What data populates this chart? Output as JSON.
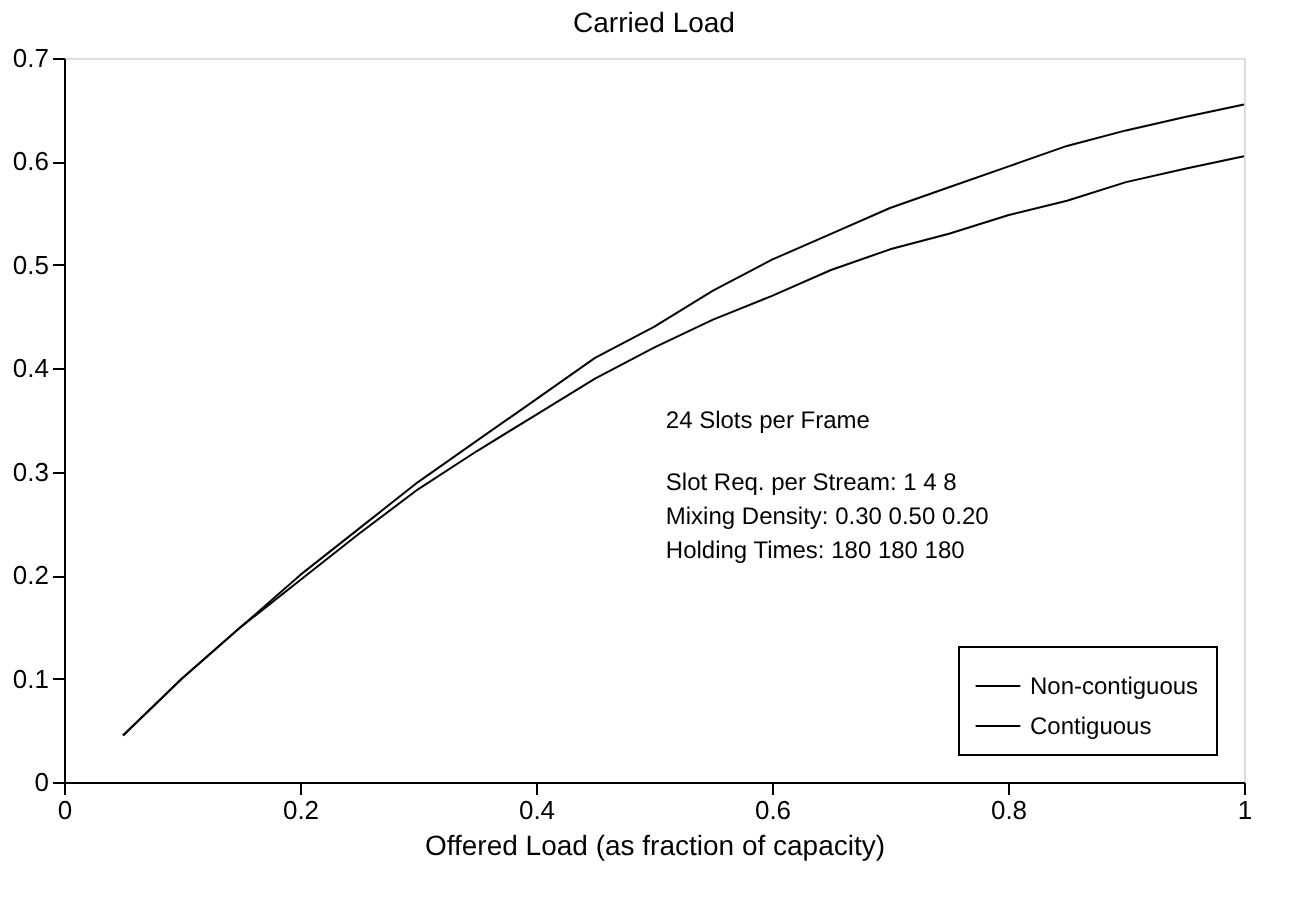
{
  "chart_data": {
    "type": "line",
    "title": "Carried Load",
    "xlabel": "Offered Load (as fraction of capacity)",
    "x": [
      0.05,
      0.1,
      0.15,
      0.2,
      0.25,
      0.3,
      0.35,
      0.4,
      0.45,
      0.5,
      0.55,
      0.6,
      0.65,
      0.7,
      0.75,
      0.8,
      0.85,
      0.9,
      0.95,
      1.0
    ],
    "series": [
      {
        "name": "Non-contiguous",
        "color": "#000000",
        "values": [
          0.045,
          0.1,
          0.15,
          0.2,
          0.245,
          0.29,
          0.33,
          0.37,
          0.41,
          0.44,
          0.475,
          0.505,
          0.53,
          0.555,
          0.575,
          0.595,
          0.615,
          0.63,
          0.643,
          0.655
        ]
      },
      {
        "name": "Contiguous",
        "color": "#000000",
        "values": [
          0.045,
          0.1,
          0.15,
          0.195,
          0.24,
          0.283,
          0.32,
          0.355,
          0.39,
          0.42,
          0.447,
          0.47,
          0.495,
          0.515,
          0.53,
          0.548,
          0.562,
          0.58,
          0.593,
          0.605
        ]
      }
    ],
    "annotations": [
      "24 Slots per Frame",
      "Slot Req. per Stream: 1  4  8",
      "Mixing Density: 0.30  0.50  0.20",
      "Holding Times: 180  180  180"
    ],
    "xlim": [
      0,
      1
    ],
    "xticks": [
      0,
      0.2,
      0.4,
      0.6,
      0.8,
      1
    ],
    "ylim": [
      0,
      0.7
    ],
    "yticks": [
      0,
      0.1,
      0.2,
      0.3,
      0.4,
      0.5,
      0.6,
      0.7
    ],
    "grid": false,
    "legend": "bottom right",
    "marker": "none",
    "line_style": "solid"
  }
}
